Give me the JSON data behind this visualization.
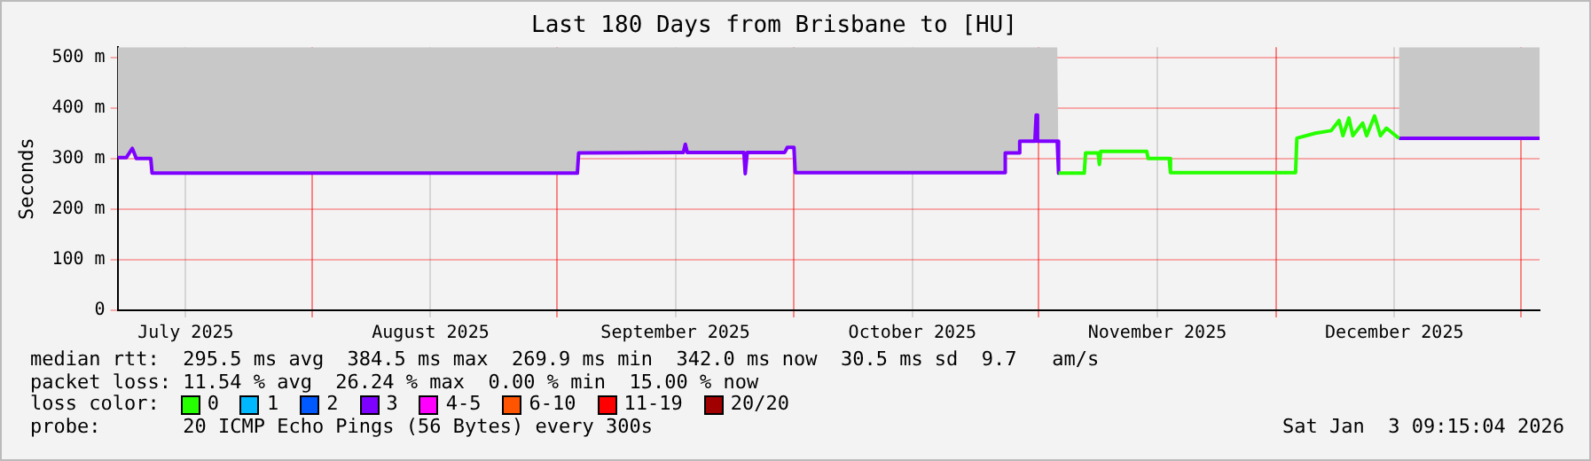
{
  "chart_data": {
    "type": "line",
    "title": "Last 180 Days from Brisbane to [HU]",
    "ylabel": "Seconds",
    "legend_title": "loss color:",
    "xlim": [
      "2025-07-07T09:15",
      "2026-01-03T09:15"
    ],
    "xticks": [
      {
        "value": "2025-07-16",
        "label": "July 2025"
      },
      {
        "value": "2025-08-01",
        "label": null
      },
      {
        "value": "2025-08-16",
        "label": "August 2025"
      },
      {
        "value": "2025-09-01",
        "label": null
      },
      {
        "value": "2025-09-16",
        "label": "September 2025"
      },
      {
        "value": "2025-10-01",
        "label": null
      },
      {
        "value": "2025-10-16",
        "label": "October 2025"
      },
      {
        "value": "2025-11-01",
        "label": null
      },
      {
        "value": "2025-11-16",
        "label": "November 2025"
      },
      {
        "value": "2025-12-01",
        "label": null
      },
      {
        "value": "2025-12-16",
        "label": "December 2025"
      },
      {
        "value": "2026-01-01",
        "label": null
      }
    ],
    "ylim": [
      0,
      520
    ],
    "yticks": [
      0,
      {
        "value": 100,
        "label": "100 m"
      },
      {
        "value": 200,
        "label": "200 m"
      },
      {
        "value": 300,
        "label": "300 m"
      },
      {
        "value": 400,
        "label": "400 m"
      },
      {
        "value": 500,
        "label": "500 m"
      }
    ],
    "grid": true,
    "legend": "bottom",
    "marker": "none",
    "line_style": "solid",
    "series": [
      {
        "name": "0",
        "color": "#26ff00",
        "x": [
          "2025-11-03T12:00",
          "2025-11-06T18:00",
          "2025-11-06T22:00",
          "2025-11-08T12:00",
          "2025-11-08T16:00",
          "2025-11-08T20:00",
          "2025-11-14T16:00",
          "2025-11-14T20:00",
          "2025-11-17T12:00",
          "2025-11-17T16:00",
          "2025-12-03T12:00",
          "2025-12-03T16:00",
          "2025-12-06T00:00",
          "2025-12-08T00:00",
          "2025-12-09T00:00",
          "2025-12-09T12:00",
          "2025-12-10T06:00",
          "2025-12-10T18:00",
          "2025-12-12T00:00",
          "2025-12-12T12:00",
          "2025-12-13T12:00",
          "2025-12-14T06:00",
          "2025-12-15T00:00",
          "2025-12-16T14:00"
        ],
        "values": [
          271,
          271,
          311,
          311,
          288,
          314,
          314,
          300,
          300,
          272,
          272,
          340,
          350,
          355,
          375,
          345,
          380,
          345,
          370,
          345,
          384,
          345,
          360,
          340
        ]
      },
      {
        "name": "1",
        "color": "#00b8ff"
      },
      {
        "name": "2",
        "color": "#0059ff"
      },
      {
        "name": "3",
        "color": "#7e00ff",
        "x": [
          "2025-07-07T09:15",
          "2025-07-08T12:00",
          "2025-07-09T06:00",
          "2025-07-09T18:00",
          "2025-07-11T14:00",
          "2025-07-11T18:00",
          "2025-09-03T14:00",
          "2025-09-03T18:00",
          "2025-09-17T00:00",
          "2025-09-17T06:00",
          "2025-09-17T12:00",
          "2025-09-24T16:00",
          "2025-09-24T20:00",
          "2025-09-25T02:00",
          "2025-09-29T20:00",
          "2025-09-30T04:00",
          "2025-10-01T00:00",
          "2025-10-01T04:00",
          "2025-10-27T14:00",
          "2025-10-27T18:00",
          "2025-10-29T10:00",
          "2025-10-29T14:00",
          "2025-10-31T12:00",
          "2025-10-31T16:00",
          "2025-10-31T20:00",
          "2025-11-03T08:00",
          "2025-11-03T12:00",
          "2025-11-10T00:00",
          "2025-12-16T14:00",
          "2026-01-03T09:15"
        ],
        "values": [
          302,
          302,
          320,
          300,
          300,
          271,
          271,
          311,
          312,
          328,
          312,
          312,
          270,
          312,
          312,
          322,
          322,
          272,
          272,
          311,
          311,
          334,
          334,
          386,
          334,
          334,
          271,
          null,
          340,
          340
        ],
        "lower": [
          302,
          302,
          320,
          300,
          300,
          271,
          271,
          311,
          312,
          328,
          312,
          312,
          270,
          312,
          312,
          322,
          322,
          272,
          272,
          311,
          311,
          334,
          334,
          386,
          334,
          334,
          271,
          null,
          340,
          340
        ],
        "upper": [
          520,
          520,
          520,
          520,
          520,
          520,
          520,
          520,
          520,
          520,
          520,
          520,
          520,
          520,
          520,
          520,
          520,
          520,
          520,
          520,
          520,
          520,
          520,
          520,
          520,
          520,
          520,
          null,
          520,
          520
        ]
      },
      {
        "name": "4-5",
        "color": "#ff00ff"
      },
      {
        "name": "6-10",
        "color": "#ff5500"
      },
      {
        "name": "11-19",
        "color": "#ff0000"
      },
      {
        "name": "20/20",
        "color": "#a10000"
      }
    ],
    "annotations": [
      "median rtt:  295.5 ms avg  384.5 ms max  269.9 ms min  342.0 ms now  30.5 ms sd  9.7   am/s",
      "packet loss: 11.54 % avg  26.24 % max  0.00 % min  15.00 % now",
      "probe:       20 ICMP Echo Pings (56 Bytes) every 300s",
      "Sat Jan  3 09:15:04 2026"
    ]
  }
}
